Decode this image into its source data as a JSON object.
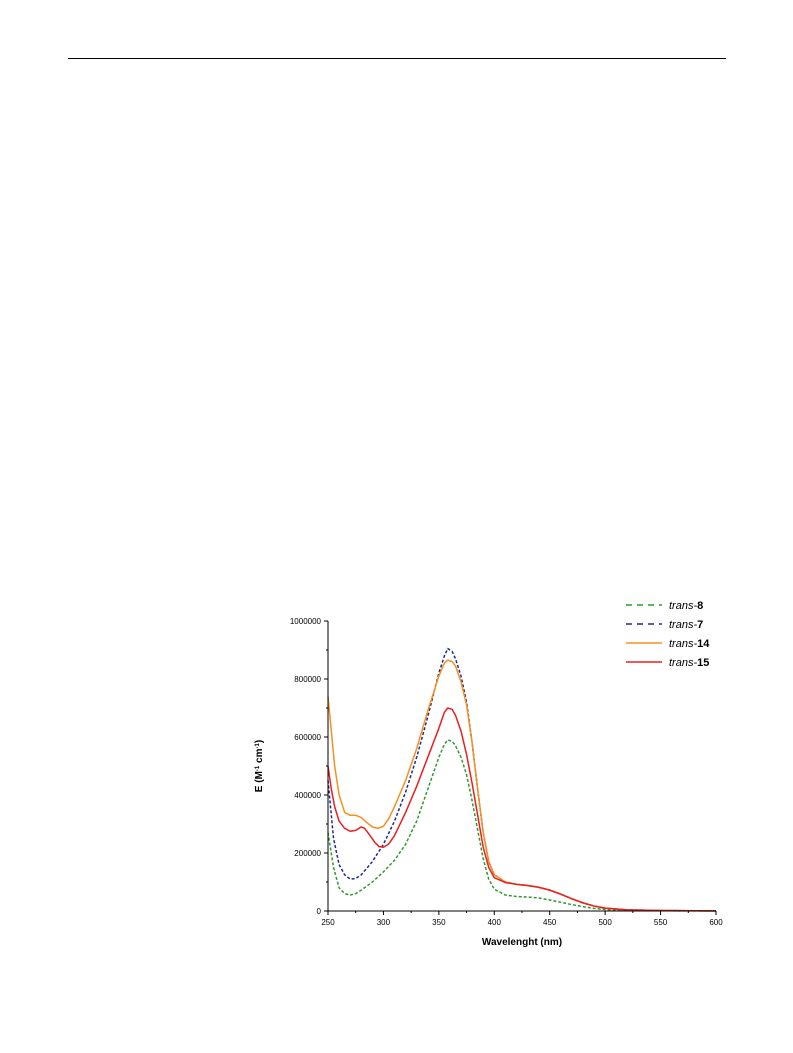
{
  "chart_data": {
    "type": "line",
    "title": "",
    "xlabel": "Wavelenght (nm)",
    "ylabel": {
      "prefix": "E (M",
      "sup1": "-1",
      "mid": " cm",
      "sup2": "-1",
      "suffix": ")"
    },
    "xlim": [
      250,
      600
    ],
    "ylim": [
      0,
      1000000
    ],
    "x_ticks": [
      250,
      300,
      350,
      400,
      450,
      500,
      550,
      600
    ],
    "y_ticks": [
      0,
      200000,
      400000,
      600000,
      800000,
      1000000
    ],
    "legend_position": "top-right",
    "series": [
      {
        "name": "trans-8",
        "name_italic": "trans-",
        "name_bold": "8",
        "color": "#2e9a2e",
        "style": "dashed",
        "points": [
          [
            250,
            270000
          ],
          [
            255,
            150000
          ],
          [
            260,
            80000
          ],
          [
            265,
            60000
          ],
          [
            270,
            55000
          ],
          [
            275,
            60000
          ],
          [
            280,
            72000
          ],
          [
            290,
            100000
          ],
          [
            300,
            135000
          ],
          [
            310,
            175000
          ],
          [
            320,
            230000
          ],
          [
            330,
            310000
          ],
          [
            340,
            420000
          ],
          [
            350,
            530000
          ],
          [
            355,
            575000
          ],
          [
            358,
            590000
          ],
          [
            362,
            585000
          ],
          [
            365,
            570000
          ],
          [
            370,
            530000
          ],
          [
            375,
            470000
          ],
          [
            380,
            380000
          ],
          [
            385,
            280000
          ],
          [
            390,
            180000
          ],
          [
            395,
            110000
          ],
          [
            400,
            75000
          ],
          [
            410,
            55000
          ],
          [
            420,
            50000
          ],
          [
            430,
            48000
          ],
          [
            440,
            45000
          ],
          [
            450,
            38000
          ],
          [
            460,
            30000
          ],
          [
            470,
            22000
          ],
          [
            480,
            15000
          ],
          [
            490,
            9000
          ],
          [
            500,
            5000
          ],
          [
            520,
            2000
          ],
          [
            550,
            800
          ],
          [
            600,
            200
          ]
        ]
      },
      {
        "name": "trans-7",
        "name_italic": "trans-",
        "name_bold": "7",
        "color": "#1f2a8a",
        "style": "dashed",
        "points": [
          [
            250,
            450000
          ],
          [
            255,
            250000
          ],
          [
            260,
            160000
          ],
          [
            265,
            125000
          ],
          [
            270,
            110000
          ],
          [
            275,
            112000
          ],
          [
            280,
            125000
          ],
          [
            290,
            170000
          ],
          [
            300,
            230000
          ],
          [
            310,
            310000
          ],
          [
            320,
            410000
          ],
          [
            330,
            530000
          ],
          [
            340,
            670000
          ],
          [
            350,
            820000
          ],
          [
            355,
            880000
          ],
          [
            358,
            905000
          ],
          [
            362,
            895000
          ],
          [
            365,
            870000
          ],
          [
            370,
            810000
          ],
          [
            375,
            720000
          ],
          [
            380,
            580000
          ],
          [
            385,
            420000
          ],
          [
            390,
            270000
          ],
          [
            395,
            170000
          ],
          [
            400,
            125000
          ],
          [
            410,
            100000
          ],
          [
            420,
            92000
          ],
          [
            430,
            88000
          ],
          [
            440,
            82000
          ],
          [
            450,
            72000
          ],
          [
            460,
            58000
          ],
          [
            470,
            42000
          ],
          [
            480,
            28000
          ],
          [
            490,
            17000
          ],
          [
            500,
            10000
          ],
          [
            520,
            4000
          ],
          [
            550,
            1500
          ],
          [
            600,
            300
          ]
        ]
      },
      {
        "name": "trans-14",
        "name_italic": "trans-",
        "name_bold": "14",
        "color": "#f59020",
        "style": "solid",
        "points": [
          [
            250,
            740000
          ],
          [
            253,
            620000
          ],
          [
            256,
            500000
          ],
          [
            260,
            400000
          ],
          [
            265,
            340000
          ],
          [
            270,
            330000
          ],
          [
            275,
            330000
          ],
          [
            280,
            322000
          ],
          [
            285,
            305000
          ],
          [
            290,
            290000
          ],
          [
            295,
            285000
          ],
          [
            300,
            292000
          ],
          [
            305,
            320000
          ],
          [
            310,
            360000
          ],
          [
            320,
            450000
          ],
          [
            330,
            560000
          ],
          [
            340,
            690000
          ],
          [
            350,
            810000
          ],
          [
            355,
            855000
          ],
          [
            358,
            865000
          ],
          [
            362,
            860000
          ],
          [
            365,
            845000
          ],
          [
            370,
            790000
          ],
          [
            375,
            710000
          ],
          [
            380,
            580000
          ],
          [
            385,
            420000
          ],
          [
            390,
            270000
          ],
          [
            395,
            170000
          ],
          [
            400,
            125000
          ],
          [
            410,
            100000
          ],
          [
            420,
            92000
          ],
          [
            430,
            88000
          ],
          [
            440,
            82000
          ],
          [
            450,
            72000
          ],
          [
            460,
            58000
          ],
          [
            470,
            42000
          ],
          [
            480,
            28000
          ],
          [
            490,
            17000
          ],
          [
            500,
            10000
          ],
          [
            520,
            4000
          ],
          [
            550,
            1500
          ],
          [
            600,
            300
          ]
        ]
      },
      {
        "name": "trans-15",
        "name_italic": "trans-",
        "name_bold": "15",
        "color": "#e8201e",
        "style": "solid",
        "points": [
          [
            250,
            500000
          ],
          [
            253,
            420000
          ],
          [
            256,
            360000
          ],
          [
            260,
            310000
          ],
          [
            265,
            285000
          ],
          [
            270,
            275000
          ],
          [
            275,
            278000
          ],
          [
            280,
            290000
          ],
          [
            283,
            285000
          ],
          [
            287,
            265000
          ],
          [
            292,
            238000
          ],
          [
            296,
            222000
          ],
          [
            300,
            220000
          ],
          [
            305,
            232000
          ],
          [
            310,
            260000
          ],
          [
            320,
            340000
          ],
          [
            330,
            430000
          ],
          [
            340,
            530000
          ],
          [
            350,
            630000
          ],
          [
            355,
            685000
          ],
          [
            358,
            700000
          ],
          [
            362,
            695000
          ],
          [
            365,
            675000
          ],
          [
            370,
            620000
          ],
          [
            375,
            540000
          ],
          [
            380,
            440000
          ],
          [
            385,
            330000
          ],
          [
            390,
            220000
          ],
          [
            395,
            150000
          ],
          [
            400,
            115000
          ],
          [
            410,
            98000
          ],
          [
            420,
            92000
          ],
          [
            430,
            88000
          ],
          [
            440,
            82000
          ],
          [
            450,
            72000
          ],
          [
            460,
            58000
          ],
          [
            470,
            42000
          ],
          [
            480,
            28000
          ],
          [
            490,
            17000
          ],
          [
            500,
            10000
          ],
          [
            520,
            4000
          ],
          [
            550,
            1500
          ],
          [
            600,
            300
          ]
        ]
      }
    ]
  }
}
